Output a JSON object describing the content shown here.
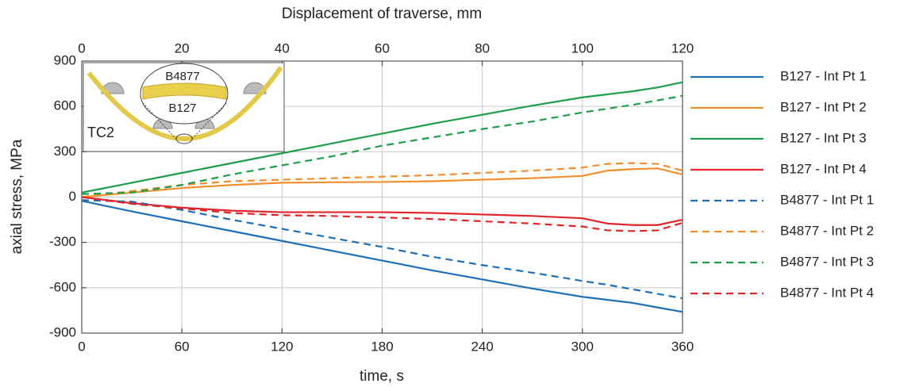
{
  "chart_data": {
    "type": "line",
    "xlabel": "time, s",
    "x2label": "Displacement of traverse, mm",
    "ylabel": "axial stress, MPa",
    "x": [
      0,
      30,
      60,
      90,
      120,
      150,
      180,
      210,
      240,
      270,
      300,
      315,
      330,
      345,
      360
    ],
    "xlim": [
      0,
      360
    ],
    "xticks": [
      0,
      60,
      120,
      180,
      240,
      300,
      360
    ],
    "x2lim": [
      0,
      120
    ],
    "x2ticks": [
      0,
      20,
      40,
      60,
      80,
      100,
      120
    ],
    "ylim": [
      -900,
      900
    ],
    "yticks": [
      -900,
      -600,
      -300,
      0,
      300,
      600,
      900
    ],
    "grid": true,
    "legend": "right",
    "series": [
      {
        "name": "B127 - Int Pt 1",
        "color": "#1f6fb8",
        "linestyle": "solid",
        "values": [
          -25,
          -95,
          -160,
          -225,
          -290,
          -355,
          -420,
          -485,
          -545,
          -605,
          -660,
          -680,
          -700,
          -730,
          -760
        ]
      },
      {
        "name": "B127 - Int Pt 2",
        "color": "#f28e2b",
        "linestyle": "solid",
        "values": [
          0,
          30,
          60,
          80,
          95,
          98,
          100,
          105,
          115,
          125,
          140,
          175,
          185,
          190,
          150
        ]
      },
      {
        "name": "B127 - Int Pt 3",
        "color": "#1e9e4a",
        "linestyle": "solid",
        "values": [
          30,
          95,
          160,
          225,
          290,
          355,
          420,
          485,
          545,
          605,
          660,
          680,
          700,
          725,
          760
        ]
      },
      {
        "name": "B127 - Int Pt 4",
        "color": "#e0262a",
        "linestyle": "solid",
        "values": [
          0,
          -40,
          -70,
          -90,
          -100,
          -100,
          -100,
          -105,
          -115,
          -125,
          -140,
          -175,
          -185,
          -185,
          -150
        ]
      },
      {
        "name": "B4877 - Int Pt 1",
        "color": "#1f6fb8",
        "linestyle": "dashed",
        "values": [
          -20,
          -30,
          -85,
          -150,
          -210,
          -270,
          -330,
          -395,
          -450,
          -500,
          -555,
          -580,
          -610,
          -640,
          -670
        ]
      },
      {
        "name": "B4877 - Int Pt 2",
        "color": "#f28e2b",
        "linestyle": "dashed",
        "values": [
          0,
          40,
          80,
          105,
          115,
          125,
          135,
          145,
          160,
          175,
          195,
          220,
          225,
          220,
          175
        ]
      },
      {
        "name": "B4877 - Int Pt 3",
        "color": "#1e9e4a",
        "linestyle": "dashed",
        "values": [
          20,
          30,
          80,
          150,
          210,
          270,
          340,
          395,
          450,
          500,
          560,
          585,
          610,
          640,
          670
        ]
      },
      {
        "name": "B4877 - Int Pt 4",
        "color": "#e0262a",
        "linestyle": "dashed",
        "values": [
          0,
          -45,
          -75,
          -105,
          -120,
          -125,
          -135,
          -145,
          -160,
          -175,
          -195,
          -220,
          -225,
          -220,
          -170
        ]
      }
    ],
    "inset": {
      "label": "TC2",
      "upper_beam": "B4877",
      "lower_beam": "B127"
    }
  }
}
